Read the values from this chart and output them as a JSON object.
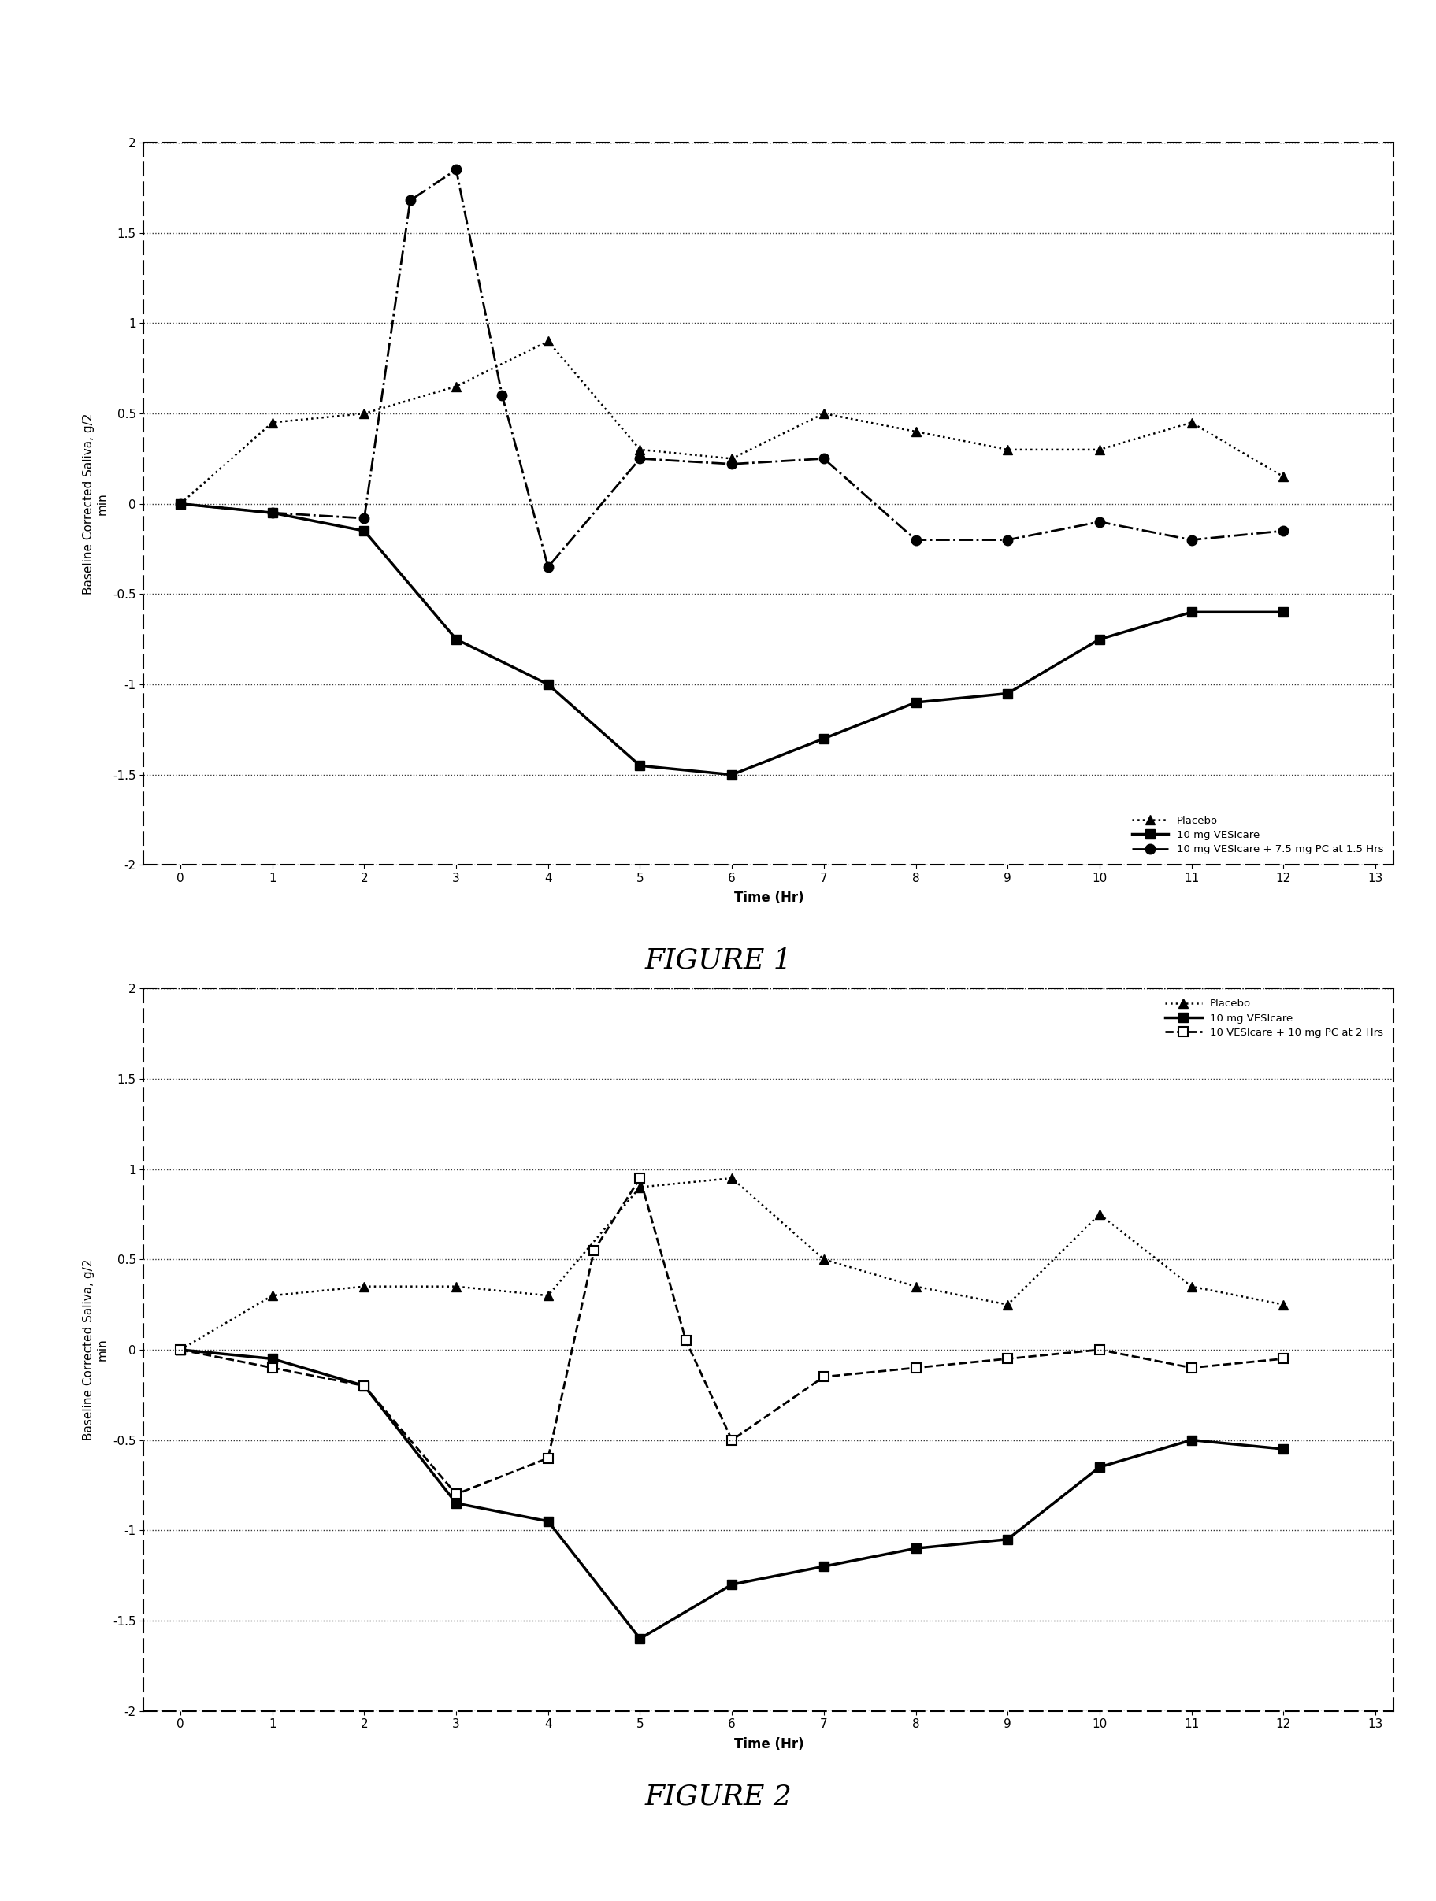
{
  "fig1": {
    "placebo": {
      "x": [
        0,
        1,
        2,
        3,
        4,
        5,
        6,
        7,
        8,
        9,
        10,
        11,
        12
      ],
      "y": [
        0,
        0.45,
        0.5,
        0.65,
        0.9,
        0.3,
        0.25,
        0.5,
        0.4,
        0.3,
        0.3,
        0.45,
        0.15
      ]
    },
    "vesicare": {
      "x": [
        0,
        1,
        2,
        3,
        4,
        5,
        6,
        7,
        8,
        9,
        10,
        11,
        12
      ],
      "y": [
        0,
        -0.05,
        -0.15,
        -0.75,
        -1.0,
        -1.45,
        -1.5,
        -1.3,
        -1.1,
        -1.05,
        -0.75,
        -0.6,
        -0.6
      ]
    },
    "combo": {
      "x": [
        0,
        1,
        2,
        2.5,
        3,
        3.5,
        4,
        5,
        6,
        7,
        8,
        9,
        10,
        11,
        12
      ],
      "y": [
        0,
        -0.05,
        -0.08,
        1.68,
        1.85,
        0.6,
        -0.35,
        0.25,
        0.22,
        0.25,
        -0.2,
        -0.2,
        -0.1,
        -0.2,
        -0.15
      ]
    },
    "ylabel": "Baseline Corrected Saliva, g/2\nmin",
    "xlabel": "Time (Hr)",
    "ylim": [
      -2,
      2
    ],
    "yticks": [
      -2,
      -1.5,
      -1,
      -0.5,
      0,
      0.5,
      1,
      1.5,
      2
    ],
    "xticks": [
      0,
      1,
      2,
      3,
      4,
      5,
      6,
      7,
      8,
      9,
      10,
      11,
      12,
      13
    ],
    "legend1": "Placebo",
    "legend2": "10 mg VESIcare",
    "legend3": "10 mg VESIcare + 7.5 mg PC at 1.5 Hrs",
    "title": "FIGURE 1"
  },
  "fig2": {
    "placebo": {
      "x": [
        0,
        1,
        2,
        3,
        4,
        5,
        6,
        7,
        8,
        9,
        10,
        11,
        12
      ],
      "y": [
        0,
        0.3,
        0.35,
        0.35,
        0.3,
        0.9,
        0.95,
        0.5,
        0.35,
        0.25,
        0.75,
        0.35,
        0.25
      ]
    },
    "vesicare": {
      "x": [
        0,
        1,
        2,
        3,
        4,
        5,
        6,
        7,
        8,
        9,
        10,
        11,
        12
      ],
      "y": [
        0,
        -0.05,
        -0.2,
        -0.85,
        -0.95,
        -1.6,
        -1.3,
        -1.2,
        -1.1,
        -1.05,
        -0.65,
        -0.5,
        -0.55
      ]
    },
    "combo": {
      "x": [
        0,
        1,
        2,
        3,
        4,
        4.5,
        5,
        5.5,
        6,
        7,
        8,
        9,
        10,
        11,
        12
      ],
      "y": [
        0,
        -0.1,
        -0.2,
        -0.8,
        -0.6,
        0.55,
        0.95,
        0.05,
        -0.5,
        -0.15,
        -0.1,
        -0.05,
        0.0,
        -0.1,
        -0.05
      ]
    },
    "ylabel": "Baseline Corrected Saliva, g/2\nmin",
    "xlabel": "Time (Hr)",
    "ylim": [
      -2,
      2
    ],
    "yticks": [
      -2,
      -1.5,
      -1,
      -0.5,
      0,
      0.5,
      1,
      1.5,
      2
    ],
    "xticks": [
      0,
      1,
      2,
      3,
      4,
      5,
      6,
      7,
      8,
      9,
      10,
      11,
      12,
      13
    ],
    "legend1": "Placebo",
    "legend2": "10 mg VESIcare",
    "legend3": "10 VESIcare + 10 mg PC at 2 Hrs",
    "title": "FIGURE 2"
  },
  "background_color": "#ffffff",
  "border_color": "#000000",
  "text_color": "#000000"
}
